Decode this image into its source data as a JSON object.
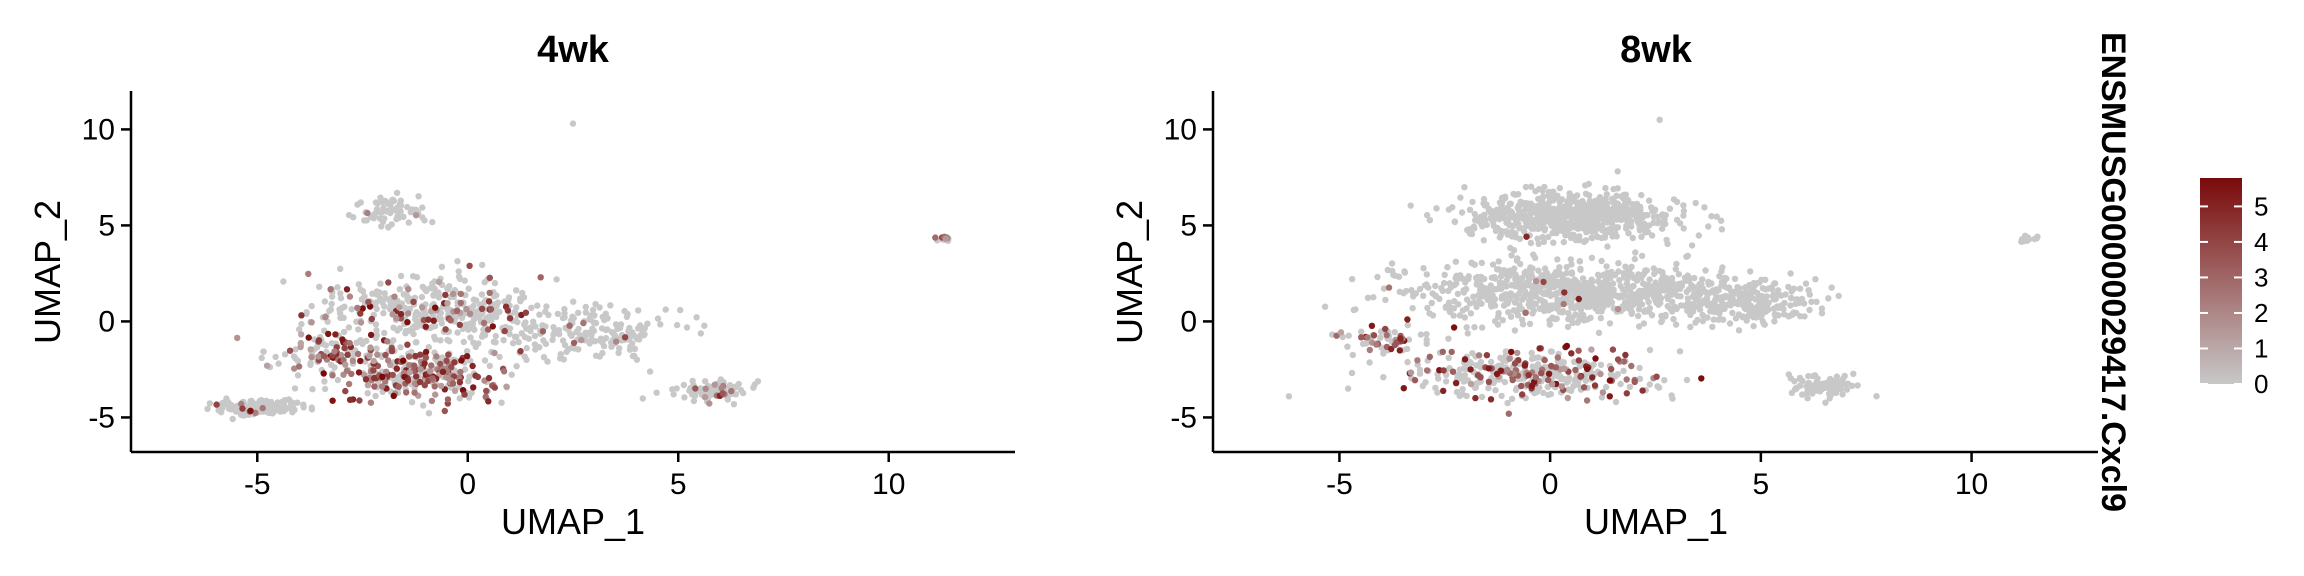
{
  "chart_data": {
    "type": "scatter",
    "feature": "ENSMUSG00000029417.Cxcl9",
    "xlabel": "UMAP_1",
    "ylabel": "UMAP_2",
    "xlim": [
      -8,
      13
    ],
    "ylim": [
      -6.8,
      12
    ],
    "x_ticks": [
      -5,
      0,
      5,
      10
    ],
    "y_ticks": [
      -5,
      0,
      5,
      10
    ],
    "grid": false,
    "color_scale": {
      "low": "#c8c8c8",
      "high": "#7a0a0a",
      "min": 0,
      "max": 5.8,
      "ticks": [
        0,
        1,
        2,
        3,
        4,
        5
      ]
    },
    "legend_position": "right",
    "panels": [
      {
        "title": "4wk",
        "clusters": [
          {
            "center": [
              -1.8,
              5.8
            ],
            "spread": [
              0.9,
              0.9
            ],
            "n": 70,
            "expressed": 0.04
          },
          {
            "center": [
              -1.0,
              0.5
            ],
            "spread": [
              2.4,
              1.6
            ],
            "n": 380,
            "expressed": 0.15
          },
          {
            "center": [
              2.5,
              -0.5
            ],
            "spread": [
              2.4,
              1.3
            ],
            "n": 200,
            "expressed": 0.08
          },
          {
            "center": [
              -1.2,
              -2.8
            ],
            "spread": [
              1.8,
              1.2
            ],
            "n": 300,
            "expressed": 0.55
          },
          {
            "center": [
              -3.3,
              -1.6
            ],
            "spread": [
              1.1,
              0.9
            ],
            "n": 90,
            "expressed": 0.45
          },
          {
            "center": [
              -5.0,
              -4.5
            ],
            "spread": [
              0.9,
              0.35
            ],
            "n": 160,
            "expressed": 0.06
          },
          {
            "center": [
              5.8,
              -3.6
            ],
            "spread": [
              0.9,
              0.5
            ],
            "n": 90,
            "expressed": 0.12
          },
          {
            "center": [
              11.3,
              4.3
            ],
            "spread": [
              0.2,
              0.2
            ],
            "n": 14,
            "expressed": 0.4
          }
        ],
        "outliers": [
          [
            2.5,
            10.3
          ]
        ]
      },
      {
        "title": "8wk",
        "clusters": [
          {
            "center": [
              0.5,
              5.5
            ],
            "spread": [
              2.3,
              1.1
            ],
            "n": 650,
            "expressed": 0.0
          },
          {
            "center": [
              0.5,
              1.5
            ],
            "spread": [
              3.4,
              1.4
            ],
            "n": 800,
            "expressed": 0.01
          },
          {
            "center": [
              4.5,
              1.0
            ],
            "spread": [
              1.6,
              1.0
            ],
            "n": 220,
            "expressed": 0.0
          },
          {
            "center": [
              -0.5,
              -2.8
            ],
            "spread": [
              2.6,
              1.1
            ],
            "n": 360,
            "expressed": 0.3
          },
          {
            "center": [
              -4.0,
              -1.0
            ],
            "spread": [
              1.1,
              0.8
            ],
            "n": 60,
            "expressed": 0.35
          },
          {
            "center": [
              6.5,
              -3.3
            ],
            "spread": [
              0.8,
              0.5
            ],
            "n": 90,
            "expressed": 0.0
          },
          {
            "center": [
              11.3,
              4.3
            ],
            "spread": [
              0.2,
              0.2
            ],
            "n": 14,
            "expressed": 0.0
          }
        ],
        "outliers": [
          [
            2.6,
            10.5
          ],
          [
            -6.2,
            -3.9
          ]
        ]
      }
    ]
  }
}
